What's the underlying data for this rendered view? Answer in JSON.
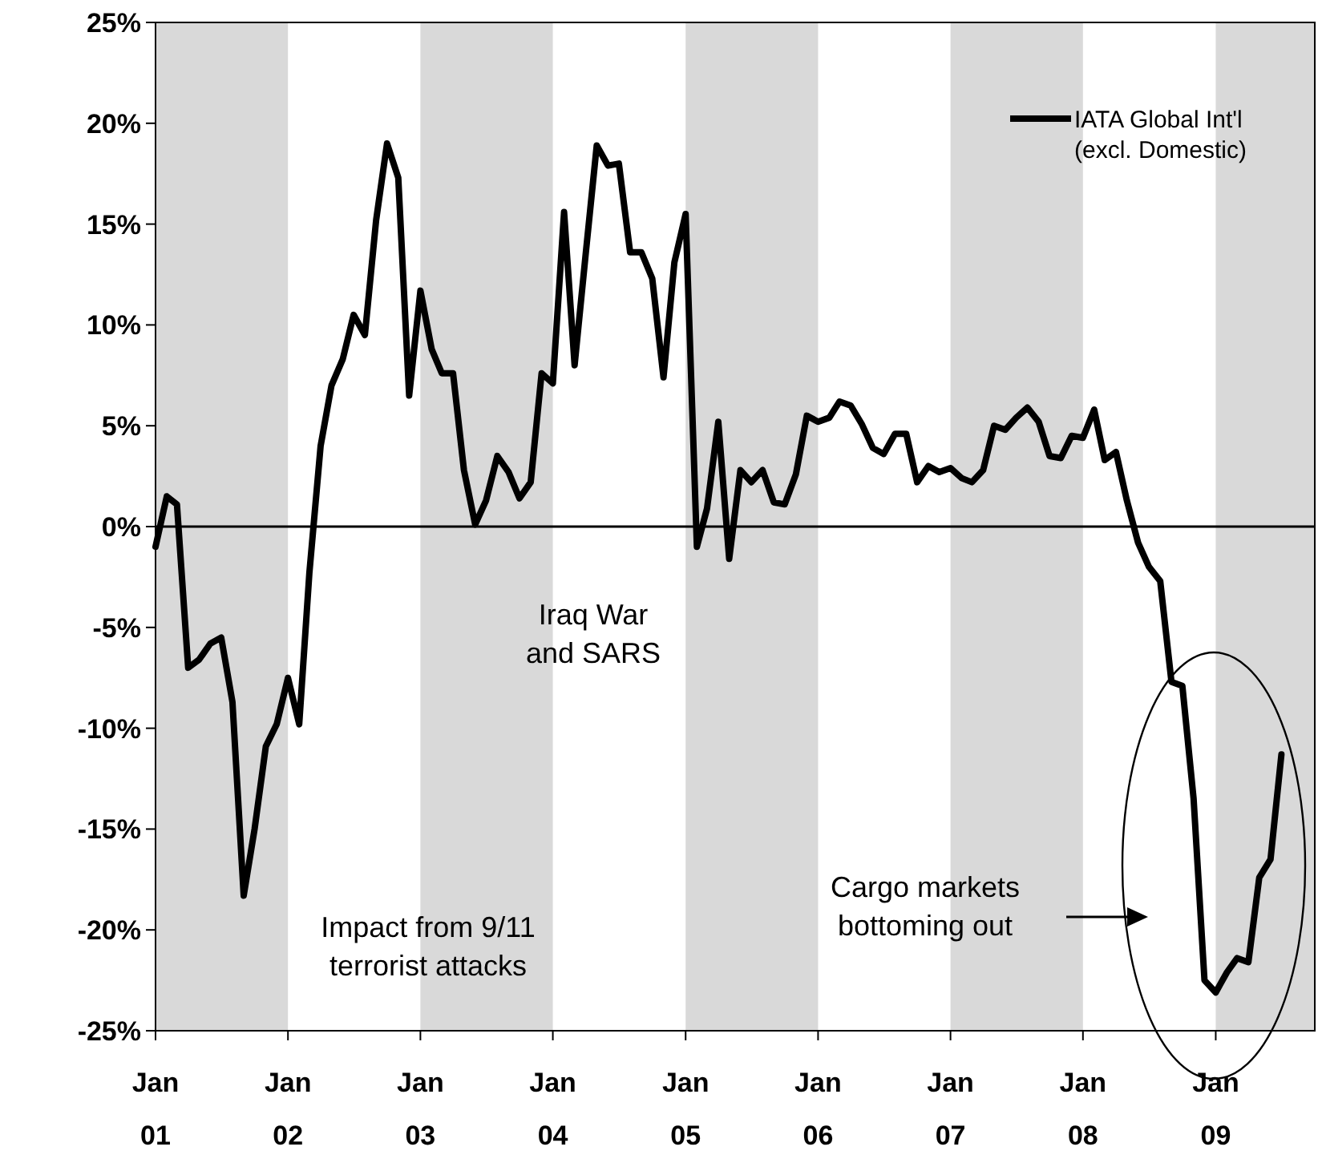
{
  "chart_data": {
    "type": "line",
    "x": [
      "2001-01",
      "2001-02",
      "2001-03",
      "2001-04",
      "2001-05",
      "2001-06",
      "2001-07",
      "2001-08",
      "2001-09",
      "2001-10",
      "2001-11",
      "2001-12",
      "2002-01",
      "2002-02",
      "2002-03",
      "2002-04",
      "2002-05",
      "2002-06",
      "2002-07",
      "2002-08",
      "2002-09",
      "2002-10",
      "2002-11",
      "2002-12",
      "2003-01",
      "2003-02",
      "2003-03",
      "2003-04",
      "2003-05",
      "2003-06",
      "2003-07",
      "2003-08",
      "2003-09",
      "2003-10",
      "2003-11",
      "2003-12",
      "2004-01",
      "2004-02",
      "2004-03",
      "2004-04",
      "2004-05",
      "2004-06",
      "2004-07",
      "2004-08",
      "2004-09",
      "2004-10",
      "2004-11",
      "2004-12",
      "2005-01",
      "2005-02",
      "2005-03",
      "2005-04",
      "2005-05",
      "2005-06",
      "2005-07",
      "2005-08",
      "2005-09",
      "2005-10",
      "2005-11",
      "2005-12",
      "2006-01",
      "2006-02",
      "2006-03",
      "2006-04",
      "2006-05",
      "2006-06",
      "2006-07",
      "2006-08",
      "2006-09",
      "2006-10",
      "2006-11",
      "2006-12",
      "2007-01",
      "2007-02",
      "2007-03",
      "2007-04",
      "2007-05",
      "2007-06",
      "2007-07",
      "2007-08",
      "2007-09",
      "2007-10",
      "2007-11",
      "2007-12",
      "2008-01",
      "2008-02",
      "2008-03",
      "2008-04",
      "2008-05",
      "2008-06",
      "2008-07",
      "2008-08",
      "2008-09",
      "2008-10",
      "2008-11",
      "2008-12",
      "2009-01",
      "2009-02",
      "2009-03",
      "2009-04",
      "2009-05",
      "2009-06",
      "2009-07"
    ],
    "series": [
      {
        "name": "IATA Global Int'l (excl. Domestic)",
        "color": "#000000",
        "values": [
          -1,
          1.5,
          1.1,
          -7.0,
          -6.6,
          -5.8,
          -5.5,
          -8.7,
          -18.3,
          -15,
          -10.9,
          -9.8,
          -7.5,
          -9.8,
          -2.3,
          4,
          7,
          8.3,
          10.5,
          9.5,
          15.2,
          19,
          17.3,
          6.5,
          11.7,
          8.8,
          7.6,
          7.6,
          2.8,
          0.1,
          1.3,
          3.5,
          2.7,
          1.4,
          2.2,
          7.6,
          7.1,
          15.6,
          8,
          13.6,
          18.9,
          17.9,
          18.0,
          13.6,
          13.6,
          12.3,
          7.4,
          13.1,
          15.5,
          -1,
          0.9,
          5.2,
          -1.6,
          2.8,
          2.2,
          2.8,
          1.2,
          1.1,
          2.6,
          5.5,
          5.2,
          5.4,
          6.2,
          6.0,
          5.1,
          3.9,
          3.6,
          4.6,
          4.6,
          2.2,
          3.0,
          2.7,
          2.9,
          2.4,
          2.2,
          2.8,
          5.0,
          4.8,
          5.4,
          5.9,
          5.2,
          3.5,
          3.4,
          4.5,
          4.4,
          5.8,
          3.3,
          3.7,
          1.3,
          -0.8,
          -2,
          -2.7,
          -7.7,
          -7.9,
          -13.5,
          -22.5,
          -23.1,
          -22.1,
          -21.4,
          -21.6,
          -17.4,
          -16.5,
          -11.3
        ]
      }
    ],
    "xlim": [
      "2001-01",
      "2009-10"
    ],
    "xticks": [
      {
        "value": "2001-01",
        "label": "Jan\n01"
      },
      {
        "value": "2002-01",
        "label": "Jan\n02"
      },
      {
        "value": "2003-01",
        "label": "Jan\n03"
      },
      {
        "value": "2004-01",
        "label": "Jan\n04"
      },
      {
        "value": "2005-01",
        "label": "Jan\n05"
      },
      {
        "value": "2006-01",
        "label": "Jan\n06"
      },
      {
        "value": "2007-01",
        "label": "Jan\n07"
      },
      {
        "value": "2008-01",
        "label": "Jan\n08"
      },
      {
        "value": "2009-01",
        "label": "Jan\n09"
      }
    ],
    "ylim": [
      -25,
      25
    ],
    "yticks": [
      {
        "value": -25,
        "label": "-25%"
      },
      {
        "value": -20,
        "label": "-20%"
      },
      {
        "value": -15,
        "label": "-15%"
      },
      {
        "value": -10,
        "label": "-10%"
      },
      {
        "value": -5,
        "label": "-5%"
      },
      {
        "value": 0,
        "label": "0%"
      },
      {
        "value": 5,
        "label": "5%"
      },
      {
        "value": 10,
        "label": "10%"
      },
      {
        "value": 15,
        "label": "15%"
      },
      {
        "value": 20,
        "label": "20%"
      },
      {
        "value": 25,
        "label": "25%"
      }
    ],
    "bands": [
      {
        "axis": "x",
        "from": "2001-01",
        "to": "2002-01",
        "color": "#d9d9d9"
      },
      {
        "axis": "x",
        "from": "2003-01",
        "to": "2004-01",
        "color": "#d9d9d9"
      },
      {
        "axis": "x",
        "from": "2005-01",
        "to": "2006-01",
        "color": "#d9d9d9"
      },
      {
        "axis": "x",
        "from": "2007-01",
        "to": "2008-01",
        "color": "#d9d9d9"
      },
      {
        "axis": "x",
        "from": "2009-01",
        "to": "2009-10",
        "color": "#d9d9d9"
      }
    ],
    "ref_lines": [
      {
        "axis": "y",
        "value": 0,
        "color": "#000000"
      }
    ],
    "annotations": [
      "Iraq War\nand SARS",
      "Impact from 9/11\nterrorist attacks",
      "Cargo markets\nbottoming out"
    ],
    "legend": "top right",
    "grid": false,
    "marker": "none",
    "line_style": "solid"
  }
}
